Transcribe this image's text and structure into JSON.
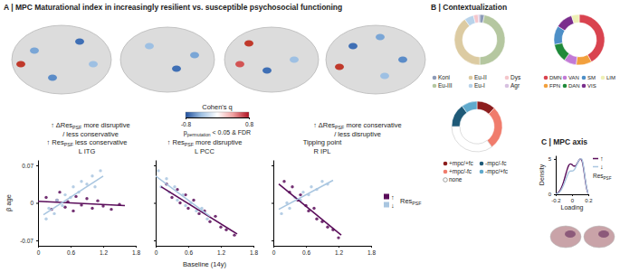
{
  "texts": {
    "panel_a": "A | MPC Maturational index in increasingly resilient vs. susceptible psychosocial functioning",
    "panel_b": "B | Contextualization",
    "left_note": [
      "↑ ΔResPSF more disruptive",
      "/ less conservative"
    ],
    "right_note": [
      "↑ ΔResPSF more conservative",
      "/ less disruptive"
    ]
  },
  "chart_data": [
    {
      "type": "colorbar",
      "title": "Cohen's q",
      "subtitle": "ppermutation < 0.05 & FDR",
      "xlim": [
        -0.8,
        0.8
      ],
      "xticks": [
        -0.8,
        0.8
      ],
      "colors": [
        "#1f4e9c",
        "#9ec0e3",
        "#ffffff",
        "#f0a0a0",
        "#b01020"
      ]
    },
    {
      "type": "scatter",
      "subtitle": "↑ ResPSF less conservative",
      "title": "L ITG",
      "ylabel": "β age",
      "xlim": [
        0,
        1.8
      ],
      "xticks": [
        0,
        0.6,
        1.2,
        1.8
      ],
      "ylim": [
        -0.08,
        0.08
      ],
      "yticks": [
        0.07,
        0,
        -0.07
      ],
      "series": [
        {
          "name": "↑",
          "color": "#5a0d5a",
          "type": "scatter",
          "x": [
            0.15,
            0.25,
            0.35,
            0.4,
            0.5,
            0.55,
            0.65,
            0.7,
            0.8,
            0.9,
            1.0,
            1.1,
            1.2,
            1.35,
            1.5
          ],
          "values": [
            0.01,
            -0.012,
            0.005,
            0.02,
            -0.008,
            0.002,
            -0.015,
            0.012,
            -0.004,
            0.008,
            -0.01,
            0.004,
            -0.006,
            -0.012,
            -0.003
          ]
        },
        {
          "name": "↓",
          "color": "#a9c6e0",
          "type": "scatter",
          "x": [
            0.15,
            0.2,
            0.3,
            0.35,
            0.45,
            0.5,
            0.6,
            0.65,
            0.75,
            0.8,
            0.9,
            1.0,
            1.05,
            1.15
          ],
          "values": [
            -0.03,
            -0.01,
            -0.02,
            0.005,
            -0.005,
            0.015,
            0.01,
            0.03,
            0.02,
            0.04,
            0.035,
            0.05,
            0.03,
            0.06
          ]
        },
        {
          "color": "#5a0d5a",
          "type": "line",
          "x": [
            0,
            1.6
          ],
          "values": [
            0.003,
            -0.005
          ]
        },
        {
          "color": "#a9c6e0",
          "type": "line",
          "x": [
            0.1,
            1.2
          ],
          "values": [
            -0.022,
            0.05
          ]
        }
      ]
    },
    {
      "type": "scatter",
      "subtitle": "↑ ResPSF more disruptive",
      "title": "L PCC",
      "xlabel": "Baseline (14y)",
      "tick_labels": "x",
      "xlim": [
        0,
        1.8
      ],
      "xticks": [
        0,
        0.6,
        1.2,
        1.8
      ],
      "ylim": [
        -0.08,
        0.08
      ],
      "yticks": [
        0.07,
        0,
        -0.07
      ],
      "series": [
        {
          "name": "↑",
          "color": "#5a0d5a",
          "type": "scatter",
          "x": [
            0.2,
            0.3,
            0.4,
            0.45,
            0.55,
            0.6,
            0.7,
            0.8,
            0.9,
            1.0,
            1.1,
            1.2,
            1.3,
            1.45
          ],
          "values": [
            0.035,
            0.01,
            0.025,
            0.0,
            0.015,
            -0.01,
            0.005,
            -0.02,
            -0.015,
            -0.035,
            -0.025,
            -0.045,
            -0.05,
            -0.06
          ]
        },
        {
          "name": "↓",
          "color": "#a9c6e0",
          "type": "scatter",
          "x": [
            0.05,
            0.1,
            0.2,
            0.25,
            0.35,
            0.4,
            0.5,
            0.55,
            0.65,
            0.75,
            0.85,
            0.95
          ],
          "values": [
            0.06,
            0.03,
            0.045,
            0.02,
            0.03,
            0.005,
            0.015,
            -0.005,
            0.0,
            -0.015,
            -0.01,
            -0.03
          ]
        },
        {
          "color": "#5a0d5a",
          "type": "line",
          "x": [
            0.1,
            1.5
          ],
          "values": [
            0.03,
            -0.058
          ]
        },
        {
          "color": "#a9c6e0",
          "type": "line",
          "x": [
            0,
            1.0
          ],
          "values": [
            0.05,
            -0.025
          ]
        }
      ]
    },
    {
      "type": "scatter",
      "subtitle": "Tipping point",
      "title": "R IPL",
      "legend": "right",
      "annotations": [
        "ResPSF"
      ],
      "tick_labels": "x",
      "xlim": [
        0,
        1.8
      ],
      "xticks": [
        0,
        0.6,
        1.2,
        1.8
      ],
      "ylim": [
        -0.08,
        0.08
      ],
      "yticks": [
        0.07,
        0,
        -0.07
      ],
      "series": [
        {
          "name": "↑",
          "color": "#5a0d5a",
          "type": "scatter",
          "x": [
            0.2,
            0.3,
            0.35,
            0.45,
            0.5,
            0.6,
            0.65,
            0.75,
            0.8,
            0.9,
            1.0,
            1.1,
            1.2
          ],
          "values": [
            0.04,
            0.02,
            0.03,
            0.005,
            0.015,
            -0.005,
            -0.015,
            -0.01,
            -0.03,
            -0.035,
            -0.045,
            -0.05,
            -0.065
          ]
        },
        {
          "name": "↓",
          "color": "#a9c6e0",
          "type": "scatter",
          "x": [
            0.15,
            0.25,
            0.3,
            0.4,
            0.5,
            0.55,
            0.65,
            0.7,
            0.8,
            0.9,
            1.0
          ],
          "values": [
            -0.02,
            0.0,
            -0.01,
            0.01,
            0.005,
            0.02,
            0.015,
            0.03,
            0.025,
            0.04,
            0.035
          ]
        },
        {
          "color": "#5a0d5a",
          "type": "line",
          "x": [
            0.1,
            1.25
          ],
          "values": [
            0.035,
            -0.06
          ]
        },
        {
          "color": "#a9c6e0",
          "type": "line",
          "x": [
            0.1,
            1.1
          ],
          "values": [
            -0.012,
            0.042
          ]
        }
      ]
    },
    {
      "type": "pie",
      "categories": [
        "Koni",
        "Eu-III",
        "Eu-II",
        "Eu-I",
        "Dys",
        "Agr"
      ],
      "values": [
        3,
        47,
        40,
        6,
        3,
        1
      ],
      "colors": [
        "#8d9bb8",
        "#b5c7a0",
        "#dccba2",
        "#b9d3ea",
        "#f4c6cb",
        "#d7c1e0"
      ]
    },
    {
      "type": "pie",
      "categories": [
        "DMN",
        "FPN",
        "VAN",
        "DAN",
        "SM",
        "VIS",
        "LIM"
      ],
      "values": [
        42,
        10,
        8,
        12,
        12,
        11,
        5
      ],
      "colors": [
        "#d9434f",
        "#f2a03d",
        "#c27ad6",
        "#1f8a3a",
        "#4d8fc7",
        "#7a2e8c",
        "#eef0b5"
      ]
    },
    {
      "type": "pie",
      "categories": [
        "+mpc/+fc",
        "+mpc/-fc",
        "none",
        "-mpc/-fc",
        "-mpc/+fc"
      ],
      "values": [
        12,
        28,
        35,
        15,
        10
      ],
      "colors": [
        "#8c1d1d",
        "#f07c6c",
        "#ffffff",
        "#1f5a78",
        "#5fa9cc"
      ]
    },
    {
      "type": "line",
      "title": "C | MPC axis",
      "xlabel": "Loading",
      "ylabel": "Density",
      "legend": "right",
      "annotations": [
        "ResPSF"
      ],
      "xlim": [
        -0.2,
        0.2
      ],
      "xticks": [
        -0.2,
        0,
        0.2
      ],
      "ylim": [
        0,
        5.5
      ],
      "yticks": [
        0,
        5
      ],
      "x": [
        -0.2,
        -0.18,
        -0.16,
        -0.14,
        -0.12,
        -0.1,
        -0.08,
        -0.06,
        -0.04,
        -0.02,
        0,
        0.02,
        0.04,
        0.06,
        0.08,
        0.1,
        0.12,
        0.14,
        0.16,
        0.18,
        0.2
      ],
      "series": [
        {
          "name": "↑",
          "color": "#5a0d5a",
          "values": [
            0.05,
            0.15,
            0.35,
            0.7,
            1.2,
            1.9,
            2.7,
            3.5,
            4.1,
            4.3,
            4.2,
            4.0,
            4.0,
            4.3,
            4.7,
            5.0,
            4.8,
            3.8,
            2.2,
            0.8,
            0.1
          ]
        },
        {
          "name": "↓",
          "color": "#a9c6e0",
          "values": [
            0.03,
            0.1,
            0.25,
            0.5,
            0.9,
            1.4,
            2.0,
            2.6,
            3.1,
            3.3,
            3.3,
            3.4,
            3.7,
            4.2,
            4.7,
            5.0,
            5.0,
            4.0,
            2.4,
            0.9,
            0.1
          ]
        }
      ]
    }
  ]
}
